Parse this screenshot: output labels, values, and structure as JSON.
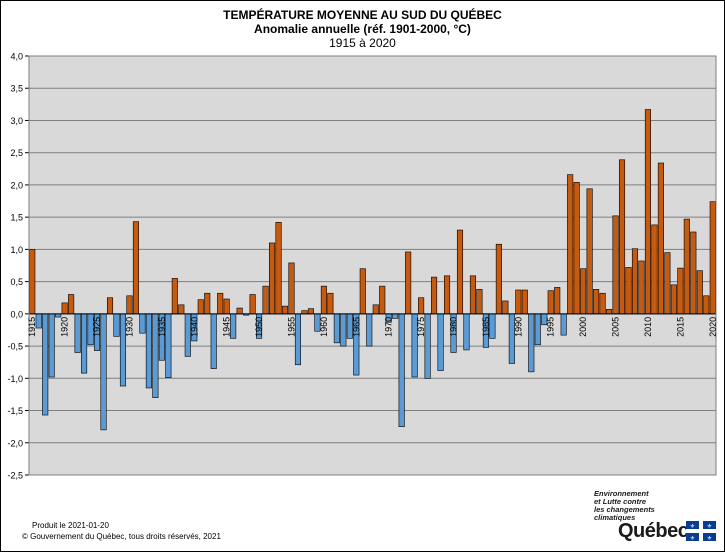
{
  "title": "TEMPÉRATURE MOYENNE AU SUD DU QUÉBEC",
  "subtitle": "Anomalie annuelle (réf. 1901-2000, °C)",
  "period": "1915 à 2020",
  "footer": {
    "produced": "Produit le 2021-01-20",
    "copyright": "© Gouvernement du Québec, tous droits réservés, 2021"
  },
  "logo": {
    "tagline": [
      "Environnement",
      "et Lutte contre",
      "les changements",
      "climatiques"
    ],
    "word": "Québec"
  },
  "colors": {
    "positive": "#c55a11",
    "negative": "#5b9bd5",
    "plot_background": "#d9d9d9",
    "grid": "#7f7f7f"
  },
  "chart_data": {
    "type": "bar",
    "title": "TEMPÉRATURE MOYENNE AU SUD DU QUÉBEC",
    "subtitle": "Anomalie annuelle (réf. 1901-2000, °C)",
    "xlabel": "",
    "ylabel": "",
    "ylim": [
      -2.5,
      4.0
    ],
    "y_ticks": [
      "-2,5",
      "-2,0",
      "-1,5",
      "-1,0",
      "-0,5",
      "0,0",
      "0,5",
      "1,0",
      "1,5",
      "2,0",
      "2,5",
      "3,0",
      "3,5",
      "4,0"
    ],
    "x_tick_labels": [
      "1915",
      "1920",
      "1925",
      "1930",
      "1935",
      "1940",
      "1945",
      "1950",
      "1955",
      "1960",
      "1965",
      "1970",
      "1975",
      "1980",
      "1985",
      "1990",
      "1995",
      "2000",
      "2005",
      "2010",
      "2015",
      "2020"
    ],
    "grid": true,
    "legend": "none",
    "start_year": 1915,
    "end_year": 2020,
    "values": [
      1.0,
      -0.22,
      -1.57,
      -0.98,
      -0.05,
      0.17,
      0.3,
      -0.6,
      -0.92,
      -0.48,
      -0.57,
      -1.8,
      0.25,
      -0.35,
      -1.12,
      0.28,
      1.43,
      -0.3,
      -1.15,
      -1.3,
      -0.72,
      -0.99,
      0.55,
      0.14,
      -0.66,
      -0.42,
      0.22,
      0.32,
      -0.85,
      0.32,
      0.23,
      -0.38,
      0.09,
      -0.02,
      0.3,
      -0.38,
      0.43,
      1.1,
      1.42,
      0.12,
      0.79,
      -0.79,
      0.05,
      0.08,
      -0.27,
      0.43,
      0.32,
      -0.45,
      -0.5,
      -0.38,
      -0.95,
      0.7,
      -0.5,
      0.14,
      0.43,
      -0.13,
      -0.07,
      -1.75,
      0.96,
      -0.98,
      0.25,
      -1.0,
      0.57,
      -0.88,
      0.59,
      -0.6,
      1.3,
      -0.56,
      0.59,
      0.38,
      -0.52,
      -0.38,
      1.08,
      0.2,
      -0.77,
      0.37,
      0.37,
      -0.9,
      -0.48,
      -0.17,
      0.36,
      0.41,
      -0.33,
      2.16,
      2.04,
      0.7,
      1.94,
      0.38,
      0.32,
      0.07,
      1.52,
      2.39,
      0.72,
      1.01,
      0.82,
      3.17,
      1.38,
      2.34,
      0.95,
      0.45,
      0.71,
      1.47,
      1.27,
      0.67,
      0.28,
      1.74
    ]
  }
}
